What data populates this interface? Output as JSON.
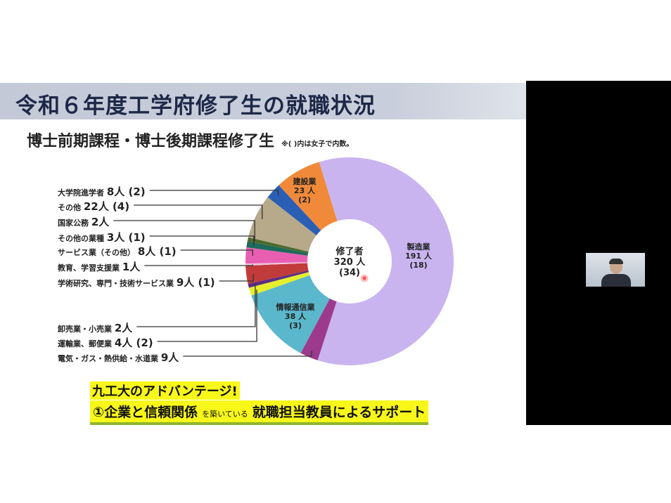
{
  "slide": {
    "title": "令和６年度工学府修了生の就職状況",
    "subtitle": "博士前期課程・博士後期課程修了生",
    "note": "※( )内は女子で内数。",
    "advantage_heading": "九工大のアドバンテージ!",
    "advantage_part1": "①企業と信頼関係",
    "advantage_part2": "を築いている",
    "advantage_part3": "就職担当教員によるサポート"
  },
  "chart_data": {
    "type": "pie",
    "donut": true,
    "center_label": {
      "title": "修了者",
      "total": "320 人",
      "female": "(34)"
    },
    "unit": "人",
    "slices": [
      {
        "name": "製造業",
        "value": 191,
        "female": 18,
        "color": "#c9b4f0",
        "label": "製造業",
        "value_text": "191 人",
        "female_text": "(18)"
      },
      {
        "name": "電気・ガス・熱供給・水道業",
        "value": 9,
        "female": null,
        "color": "#9c3a8e",
        "label": "電気・ガス・熱供給・水道業",
        "value_text": "9人"
      },
      {
        "name": "情報通信業",
        "value": 38,
        "female": 3,
        "color": "#5bb7cb",
        "label": "情報通信業",
        "value_text": "38 人",
        "female_text": "(3)"
      },
      {
        "name": "運輸業、郵便業",
        "value": 4,
        "female": 2,
        "color": "#e6ef2c",
        "label": "運輸業、郵便業",
        "value_text": "4人 (2)"
      },
      {
        "name": "卸売業・小売業",
        "value": 2,
        "female": null,
        "color": "#5b2d83",
        "label": "卸売業・小売業",
        "value_text": "2人"
      },
      {
        "name": "学術研究、専門・技術サービス業",
        "value": 9,
        "female": 1,
        "color": "#c23b3b",
        "label": "学術研究、専門・技術サービス業",
        "value_text": "9人 (1)"
      },
      {
        "name": "教育、学習支援業",
        "value": 1,
        "female": null,
        "color": "#f2c6dc",
        "label": "教育、学習支援業",
        "value_text": "1人"
      },
      {
        "name": "サービス業（その他）",
        "value": 8,
        "female": 1,
        "color": "#e85fb2",
        "label": "サービス業（その他）",
        "value_text": "8人 (1)"
      },
      {
        "name": "その他の業種",
        "value": 3,
        "female": 1,
        "color": "#1c6b5c",
        "label": "その他の業種",
        "value_text": "3人 (1)"
      },
      {
        "name": "国家公務",
        "value": 2,
        "female": null,
        "color": "#4c6a2c",
        "label": "国家公務",
        "value_text": "2人"
      },
      {
        "name": "その他",
        "value": 22,
        "female": 4,
        "color": "#b6aa8a",
        "label": "その他",
        "value_text": "22人 (4)"
      },
      {
        "name": "大学院進学者",
        "value": 8,
        "female": 2,
        "color": "#2a5fb4",
        "label": "大学院進学者",
        "value_text": "8人 (2)"
      },
      {
        "name": "建設業",
        "value": 23,
        "female": 2,
        "color": "#f08a3a",
        "label": "建設業",
        "value_text": "23 人",
        "female_text": "(2)"
      }
    ]
  }
}
